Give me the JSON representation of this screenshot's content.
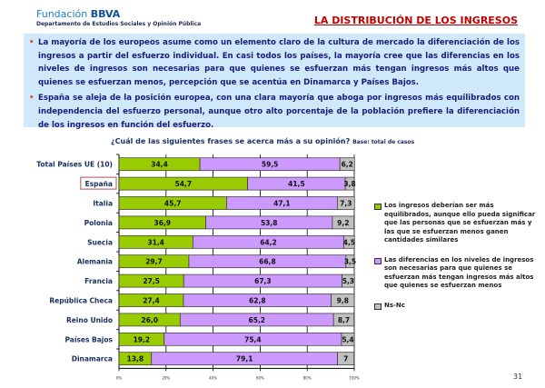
{
  "header": {
    "logo_prefix": "Fundación",
    "logo_brand": "BBVA",
    "department": "Departamento de Estudios Sociales y Opinión Pública",
    "title": "LA DISTRIBUCIÓN DE LOS INGRESOS"
  },
  "bullets": [
    "La mayoría de los europeos asume como un elemento claro de la cultura de mercado la diferenciación de los ingresos a partir del esfuerzo individual. En casi todos los países, la mayoría cree que las diferencias en los niveles de ingresos son necesarias para que quienes se esfuerzan más tengan ingresos más altos que quienes se esfuerzan menos, percepción que se acentúa en Dinamarca y Países Bajos.",
    "España se aleja de la posición europea, con una clara mayoría que aboga por ingresos más equilibrados con independencia del esfuerzo personal, aunque otro alto porcentaje de la población prefiere la diferenciación de los ingresos en función del esfuerzo."
  ],
  "chart_data": {
    "type": "bar",
    "orientation": "horizontal",
    "stacked": true,
    "title": "¿Cuál de las siguientes frases se acerca más a su opinión?",
    "subtitle": "Base: total de casos",
    "categories": [
      "Total Países UE (10)",
      "España",
      "Italia",
      "Polonia",
      "Suecia",
      "Alemania",
      "Francia",
      "República Checa",
      "Reino Unido",
      "Países Bajos",
      "Dinamarca"
    ],
    "highlighted_category": "España",
    "series": [
      {
        "name": "Los ingresos deberían ser más equilibrados, aunque ello pueda significar que las personas que se esfuerzan más y las que se esfuerzan menos ganen cantidades similares",
        "color": "#99cc00",
        "values": [
          34.4,
          54.7,
          45.7,
          36.9,
          31.4,
          29.7,
          27.5,
          27.4,
          26.0,
          19.2,
          13.8
        ],
        "labels": [
          "34,4",
          "54,7",
          "45,7",
          "36,9",
          "31,4",
          "29,7",
          "27,5",
          "27,4",
          "26,0",
          "19,2",
          "13,8"
        ]
      },
      {
        "name": "Las diferencias en los niveles de ingresos son necesarias para que quienes se esfuerzan más tengan ingresos más altos que quienes se esfuerzan menos",
        "color": "#cc99ff",
        "values": [
          59.5,
          41.5,
          47.1,
          53.8,
          64.2,
          66.8,
          67.3,
          62.8,
          65.2,
          75.4,
          79.1
        ],
        "labels": [
          "59,5",
          "41,5",
          "47,1",
          "53,8",
          "64,2",
          "66,8",
          "67,3",
          "62,8",
          "65,2",
          "75,4",
          "79,1"
        ]
      },
      {
        "name": "Ns-Nc",
        "color": "#c0c0c0",
        "values": [
          6.2,
          3.8,
          7.3,
          9.2,
          4.5,
          3.5,
          5.3,
          9.8,
          8.7,
          5.4,
          7
        ],
        "labels": [
          "6,2",
          "3,8",
          "7,3",
          "9,2",
          "4,5",
          "3,5",
          "5,3",
          "9,8",
          "8,7",
          "5,4",
          "7"
        ]
      }
    ],
    "xlim": [
      0,
      100
    ],
    "xticks": [
      "0%",
      "20%",
      "40%",
      "60%",
      "80%",
      "100%"
    ],
    "grid": true,
    "legend_position": "right"
  },
  "page_number": "31"
}
